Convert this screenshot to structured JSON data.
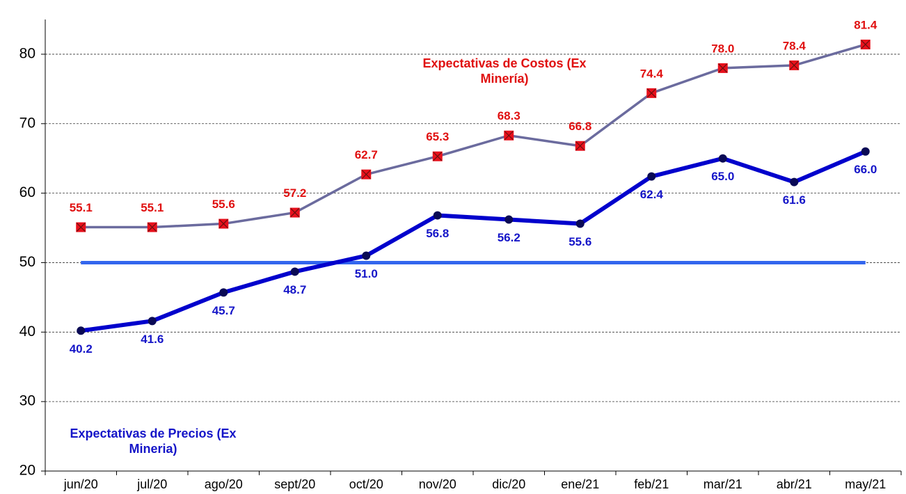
{
  "chart_data": {
    "type": "line",
    "categories": [
      "jun/20",
      "jul/20",
      "ago/20",
      "sept/20",
      "oct/20",
      "nov/20",
      "dic/20",
      "ene/21",
      "feb/21",
      "mar/21",
      "abr/21",
      "may/21"
    ],
    "series": [
      {
        "name": "Expectativas de Costos (Ex Minería)",
        "color": "#6b6b9e",
        "marker": "square",
        "marker_color": "#e8101c",
        "label_color": "#e01010",
        "values": [
          55.1,
          55.1,
          55.6,
          57.2,
          62.7,
          65.3,
          68.3,
          66.8,
          74.4,
          78.0,
          78.4,
          81.4
        ],
        "value_labels": [
          "55.1",
          "55.1",
          "55.6",
          "57.2",
          "62.7",
          "65.3",
          "68.3",
          "66.8",
          "74.4",
          "78.0",
          "78.4",
          "81.4"
        ]
      },
      {
        "name": "Expectativas de Precios (Ex Mineria)",
        "color": "#0000cc",
        "marker": "circle",
        "marker_color": "#0a0a55",
        "label_color": "#1515c8",
        "values": [
          40.2,
          41.6,
          45.7,
          48.7,
          51.0,
          56.8,
          56.2,
          55.6,
          62.4,
          65.0,
          61.6,
          66.0
        ],
        "value_labels": [
          "40.2",
          "41.6",
          "45.7",
          "48.7",
          "51.0",
          "56.8",
          "56.2",
          "55.6",
          "62.4",
          "65.0",
          "61.6",
          "66.0"
        ]
      }
    ],
    "reference_line": {
      "value": 50,
      "color": "#3366ee"
    },
    "ylim": [
      20,
      85
    ],
    "yticks": [
      20,
      30,
      40,
      50,
      60,
      70,
      80
    ],
    "grid": true
  }
}
